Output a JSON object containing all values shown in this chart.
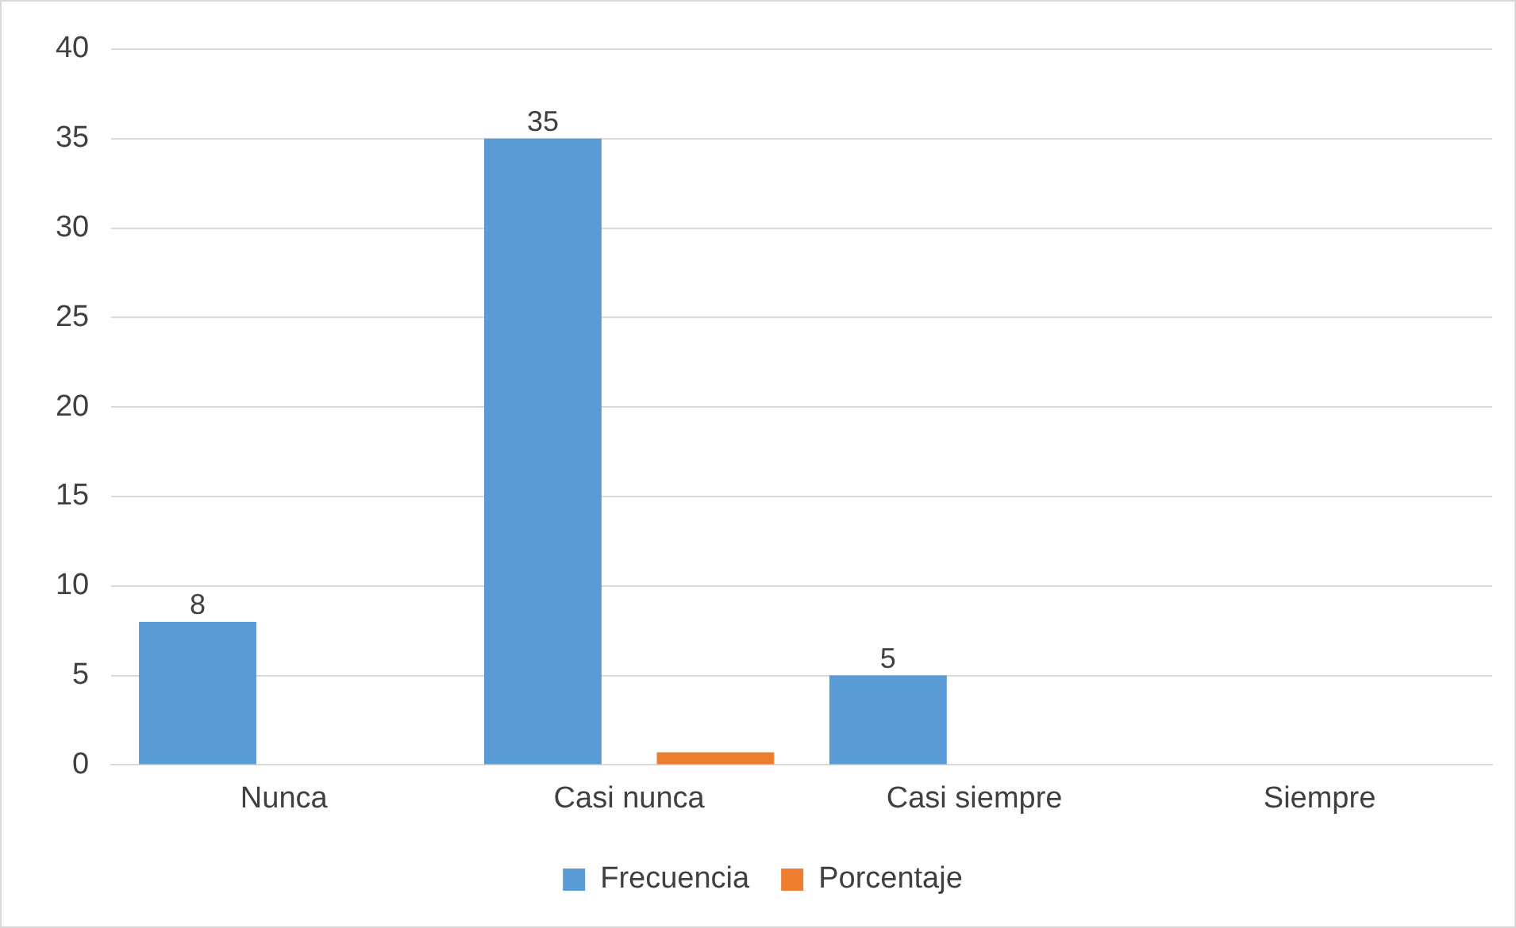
{
  "chart_data": {
    "type": "bar",
    "categories": [
      "Nunca",
      "Casi nunca",
      "Casi siempre",
      "Siempre"
    ],
    "series": [
      {
        "name": "Frecuencia",
        "color": "#5b9bd5",
        "values": [
          8,
          35,
          5,
          0
        ],
        "value_labels": [
          "8",
          "35",
          "5",
          null
        ]
      },
      {
        "name": "Porcentaje",
        "color": "#ed7d31",
        "values": [
          0,
          0.7,
          0,
          0
        ]
      }
    ],
    "ylim": [
      0,
      40
    ],
    "yticks": [
      0,
      5,
      10,
      15,
      20,
      25,
      30,
      35,
      40
    ],
    "grid": "y",
    "legend": "bottom"
  }
}
